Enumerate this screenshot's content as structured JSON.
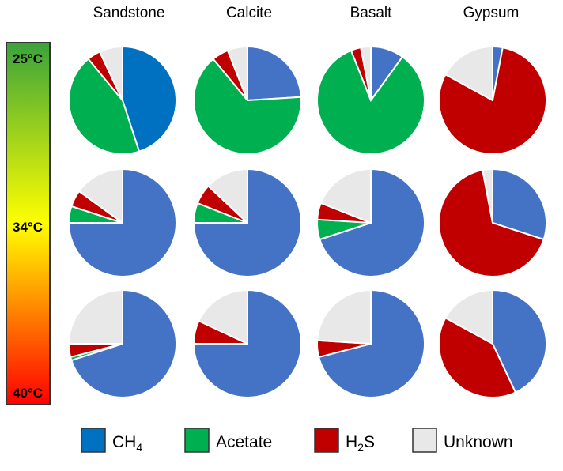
{
  "chart_data": {
    "type": "pie",
    "columns": [
      "Sandstone",
      "Calcite",
      "Basalt",
      "Gypsum"
    ],
    "temperatures": [
      "25°C",
      "34°C",
      "40°C"
    ],
    "legend": {
      "placement": "bottom",
      "entries": [
        {
          "main": "CH",
          "sub": "4",
          "after": "",
          "color": "#0070c0"
        },
        {
          "main": "Acetate",
          "sub": "",
          "after": "",
          "color": "#00b050"
        },
        {
          "main": "H",
          "sub": "2",
          "after": "S",
          "color": "#c00000"
        },
        {
          "main": "Unknown",
          "sub": "",
          "after": "",
          "color": "#e8e8e8"
        }
      ]
    },
    "colorbar": {
      "top_color": "#3aa33a",
      "middle_color": "#ffff00",
      "bottom_color": "#ff0000"
    },
    "categories": [
      "CH4",
      "Acetate",
      "H2S",
      "Unknown"
    ],
    "pies": [
      [
        {
          "colors": [
            "#0070c0",
            "#00b050",
            "#c00000",
            "#e8e8e8"
          ],
          "values": [
            45,
            44,
            4,
            7
          ]
        },
        {
          "colors": [
            "#4472c4",
            "#00b050",
            "#c00000",
            "#e8e8e8"
          ],
          "values": [
            24,
            65,
            5,
            6
          ]
        },
        {
          "colors": [
            "#4472c4",
            "#00b050",
            "#c00000",
            "#e8e8e8"
          ],
          "values": [
            10,
            84,
            3,
            3
          ]
        },
        {
          "colors": [
            "#4472c4",
            "#00b050",
            "#c00000",
            "#e8e8e8"
          ],
          "values": [
            3,
            0,
            80,
            17
          ]
        }
      ],
      [
        {
          "colors": [
            "#4472c4",
            "#00b050",
            "#c00000",
            "#e8e8e8"
          ],
          "values": [
            75,
            5,
            5,
            15
          ]
        },
        {
          "colors": [
            "#4472c4",
            "#00b050",
            "#c00000",
            "#e8e8e8"
          ],
          "values": [
            75,
            6,
            6,
            13
          ]
        },
        {
          "colors": [
            "#4472c4",
            "#00b050",
            "#c00000",
            "#e8e8e8"
          ],
          "values": [
            70,
            6,
            5,
            19
          ]
        },
        {
          "colors": [
            "#4472c4",
            "#00b050",
            "#c00000",
            "#e8e8e8"
          ],
          "values": [
            30,
            0,
            67,
            3
          ]
        }
      ],
      [
        {
          "colors": [
            "#4472c4",
            "#00b050",
            "#c00000",
            "#e8e8e8"
          ],
          "values": [
            70,
            1,
            4,
            25
          ]
        },
        {
          "colors": [
            "#4472c4",
            "#00b050",
            "#c00000",
            "#e8e8e8"
          ],
          "values": [
            75,
            0,
            7,
            18
          ]
        },
        {
          "colors": [
            "#4472c4",
            "#00b050",
            "#c00000",
            "#e8e8e8"
          ],
          "values": [
            71,
            0,
            5,
            24
          ]
        },
        {
          "colors": [
            "#4472c4",
            "#00b050",
            "#c00000",
            "#e8e8e8"
          ],
          "values": [
            43,
            0,
            40,
            17
          ]
        }
      ]
    ]
  }
}
